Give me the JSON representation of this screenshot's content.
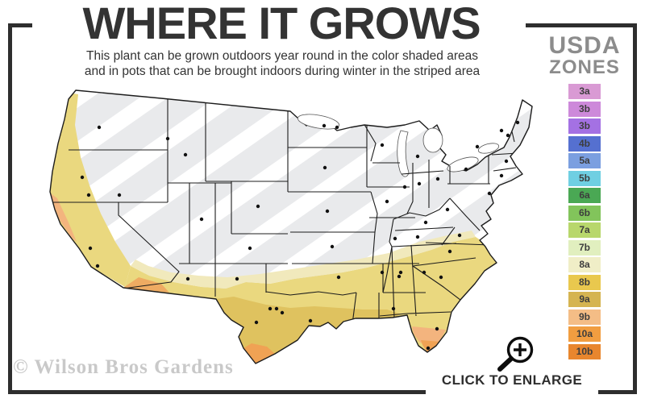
{
  "header": {
    "title": "WHERE IT GROWS",
    "subtitle_line1": "This plant can be grown outdoors year round in the color shaded areas",
    "subtitle_line2": "and in pots that can be brought indoors during winter in the striped area"
  },
  "legend": {
    "title_line1": "USDA",
    "title_line2": "ZONES",
    "zones": [
      {
        "label": "3a",
        "color": "#d99ad4"
      },
      {
        "label": "3b",
        "color": "#cd89da"
      },
      {
        "label": "3b",
        "color": "#a471e3"
      },
      {
        "label": "4b",
        "color": "#5570d0"
      },
      {
        "label": "5a",
        "color": "#7b9fe0"
      },
      {
        "label": "5b",
        "color": "#6fcfe2"
      },
      {
        "label": "6a",
        "color": "#4aa854"
      },
      {
        "label": "6b",
        "color": "#82c45b"
      },
      {
        "label": "7a",
        "color": "#b8d76c"
      },
      {
        "label": "7b",
        "color": "#e1efbf"
      },
      {
        "label": "8a",
        "color": "#f0eec7"
      },
      {
        "label": "8b",
        "color": "#e9c84e"
      },
      {
        "label": "9a",
        "color": "#d5b451"
      },
      {
        "label": "9b",
        "color": "#f4bd86"
      },
      {
        "label": "10a",
        "color": "#f19d40"
      },
      {
        "label": "10b",
        "color": "#e8862e"
      }
    ]
  },
  "map": {
    "colors": {
      "striped_area": "#e9eaec",
      "stripe": "#ffffff",
      "outline": "#1c1c1c",
      "zone_pale_yellow": "#f1e9bc",
      "zone_yellow": "#ead87f",
      "zone_gold": "#dfc25f",
      "zone_peach": "#f3b47e",
      "zone_tan": "#eeab62",
      "zone_orange": "#f0a254",
      "dot": "#111111"
    }
  },
  "footer": {
    "watermark": "© Wilson Bros Gardens",
    "enlarge_label": "CLICK TO ENLARGE"
  }
}
